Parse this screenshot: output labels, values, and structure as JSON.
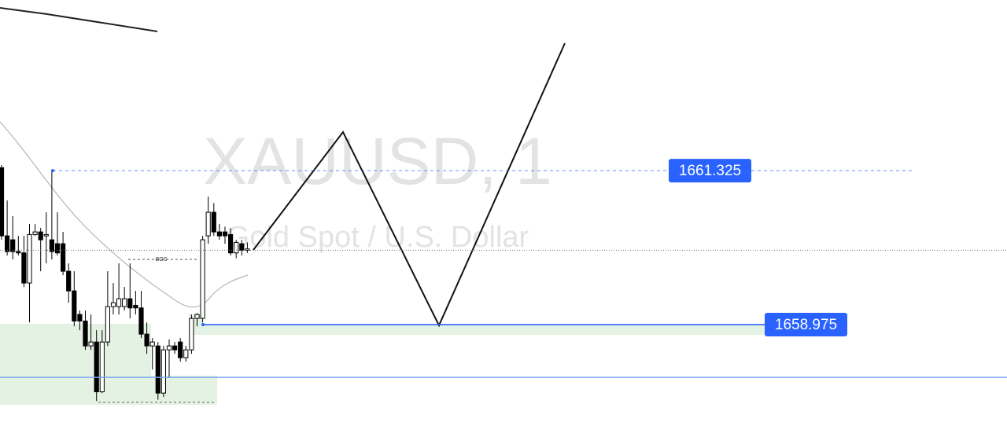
{
  "chart_data": {
    "type": "candlestick",
    "title": "XAUUSD, 1",
    "subtitle": "Gold Spot / U.S. Dollar",
    "ylim": [
      1657.26,
      1663.93
    ],
    "open": [
      1661.37,
      1660.33,
      1660.27,
      1660.09,
      1660.07,
      1659.61,
      1660.35,
      1660.39,
      1660.33,
      1660.27,
      1660.21,
      1660.21,
      1659.79,
      1659.49,
      1659.13,
      1659.03,
      1658.65,
      1658.71,
      1657.95,
      1658.71,
      1659.25,
      1659.25,
      1659.25,
      1659.37,
      1659.27,
      1659.23,
      1658.83,
      1658.65,
      1658.65,
      1657.93,
      1658.59,
      1658.65,
      1658.71,
      1658.47,
      1658.59,
      1659.07,
      1659.07,
      1660.33,
      1660.69,
      1660.39,
      1660.39,
      1660.35,
      1660.07,
      1660.21,
      1660.11
    ],
    "close": [
      1660.33,
      1660.09,
      1660.09,
      1660.07,
      1659.61,
      1660.35,
      1660.39,
      1660.27,
      1660.35,
      1660.09,
      1660.07,
      1659.79,
      1659.49,
      1659.03,
      1659.03,
      1658.65,
      1658.71,
      1657.95,
      1658.71,
      1659.25,
      1659.31,
      1659.37,
      1659.37,
      1659.23,
      1659.23,
      1658.83,
      1658.65,
      1658.71,
      1657.93,
      1658.59,
      1658.65,
      1658.59,
      1658.47,
      1658.59,
      1659.07,
      1659.13,
      1660.27,
      1660.69,
      1660.39,
      1660.33,
      1660.33,
      1660.07,
      1660.23,
      1660.11,
      1660.13
    ],
    "high": [
      1661.41,
      1660.87,
      1660.63,
      1660.33,
      1660.33,
      1660.51,
      1660.51,
      1660.45,
      1660.69,
      1661.33,
      1660.69,
      1660.39,
      1659.91,
      1659.79,
      1659.19,
      1659.19,
      1659.13,
      1658.89,
      1658.89,
      1659.79,
      1659.61,
      1659.91,
      1659.55,
      1659.91,
      1659.49,
      1659.49,
      1659.01,
      1658.77,
      1658.71,
      1658.65,
      1658.75,
      1658.71,
      1658.77,
      1658.65,
      1659.13,
      1659.15,
      1660.33,
      1660.93,
      1660.83,
      1660.51,
      1660.47,
      1660.45,
      1660.27,
      1660.27,
      1660.23
    ],
    "low": [
      1660.27,
      1660.03,
      1659.97,
      1660.03,
      1659.55,
      1659.01,
      1660.33,
      1659.79,
      1659.91,
      1659.97,
      1660.03,
      1659.73,
      1659.31,
      1658.95,
      1658.89,
      1658.59,
      1658.59,
      1657.81,
      1657.93,
      1658.65,
      1659.13,
      1659.13,
      1659.19,
      1659.07,
      1659.13,
      1658.77,
      1658.53,
      1658.29,
      1657.83,
      1657.87,
      1658.17,
      1658.53,
      1658.41,
      1658.41,
      1658.53,
      1658.95,
      1659.01,
      1660.21,
      1660.33,
      1660.27,
      1660.21,
      1660.03,
      1659.99,
      1660.03,
      1660.07
    ],
    "levels": [
      1661.325,
      1658.975
    ],
    "level_color": "#2962ff",
    "support_line": 1658.17,
    "last_price_line": 1660.11,
    "bos": {
      "label": "BOS",
      "value": 1659.97
    },
    "sweep_line": 1657.79
  }
}
